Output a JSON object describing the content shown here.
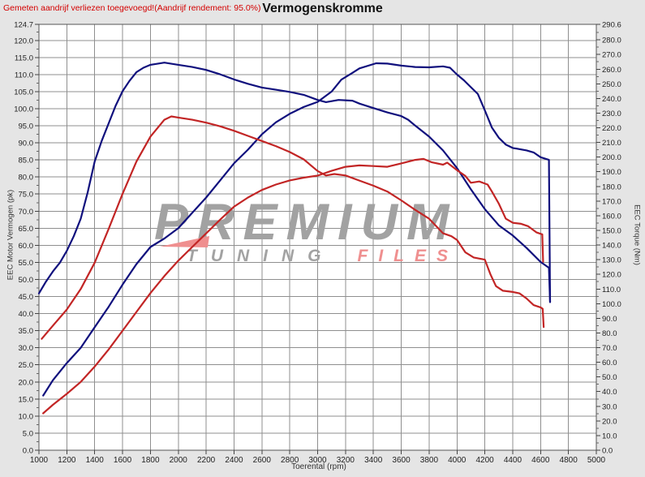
{
  "header": {
    "note": "Gemeten aandrijf verliezen toegevoegd!(Aandrijf rendement: 95.0%)",
    "title": "Vermogenskromme"
  },
  "axes": {
    "left": {
      "title": "EEC Motor Vermogen (pk)",
      "range": [
        0,
        124.7
      ],
      "tick_labels": [
        124.7,
        120,
        115,
        110,
        105,
        100,
        95,
        90,
        85,
        80,
        75,
        70,
        65,
        60,
        55,
        50,
        45,
        40,
        35,
        30,
        25,
        20,
        15,
        10,
        5,
        0
      ]
    },
    "right": {
      "title": "EEC Torque (Nm)",
      "range": [
        0,
        290.6
      ],
      "tick_labels": [
        290.6,
        280,
        270,
        260,
        250,
        240,
        230,
        220,
        210,
        200,
        190,
        180,
        170,
        160,
        150,
        140,
        130,
        120,
        110,
        100,
        90,
        80,
        70,
        60,
        50,
        40,
        30,
        20,
        10,
        0
      ]
    },
    "x": {
      "title": "Toerental (rpm)",
      "range": [
        1000,
        5000
      ],
      "tick_labels": [
        1000,
        1200,
        1400,
        1600,
        1800,
        2000,
        2200,
        2400,
        2600,
        2800,
        3000,
        3200,
        3400,
        3600,
        3800,
        4000,
        4200,
        4400,
        4600,
        4800,
        5000
      ]
    }
  },
  "watermark": {
    "line1": "PREMIUM",
    "line2a": "TUNING",
    "line2b": "FILES"
  },
  "colors": {
    "background": "#e5e5e5",
    "plot_bg": "#ffffff",
    "grid": "#8f8f8f",
    "frame": "#555555",
    "blue_curve": "#10107d",
    "red_curve": "#c22525",
    "note_red": "#d40000",
    "watermark_gray": "#a2a2a2",
    "watermark_red": "#ef8f8f",
    "tick_text": "#222222"
  },
  "chart_data": {
    "type": "line",
    "title": "Vermogenskromme",
    "xlabel": "Toerental (rpm)",
    "ylabel_left": "EEC Motor Vermogen (pk)",
    "ylabel_right": "EEC Torque (Nm)",
    "x_range": [
      1000,
      5000
    ],
    "left_range": [
      0,
      124.7
    ],
    "right_range": [
      0,
      290.6
    ],
    "grid": {
      "x_step": 200,
      "left_step": 5
    },
    "legend": "none",
    "series": [
      {
        "name": "blue-power-pk",
        "axis": "left",
        "color": "#10107d",
        "peak": "113.3 pk @ ~3450 rpm",
        "points": [
          [
            1030,
            16
          ],
          [
            1100,
            20.5
          ],
          [
            1200,
            25.5
          ],
          [
            1300,
            30
          ],
          [
            1400,
            36
          ],
          [
            1500,
            42
          ],
          [
            1600,
            48.5
          ],
          [
            1700,
            54.5
          ],
          [
            1800,
            59.5
          ],
          [
            1900,
            62
          ],
          [
            2000,
            65
          ],
          [
            2100,
            69.5
          ],
          [
            2200,
            74
          ],
          [
            2300,
            79
          ],
          [
            2400,
            84
          ],
          [
            2500,
            88
          ],
          [
            2600,
            92.5
          ],
          [
            2700,
            96
          ],
          [
            2800,
            98.5
          ],
          [
            2900,
            100.5
          ],
          [
            3000,
            102
          ],
          [
            3100,
            105
          ],
          [
            3170,
            108.5
          ],
          [
            3250,
            110.5
          ],
          [
            3300,
            111.8
          ],
          [
            3420,
            113.3
          ],
          [
            3500,
            113.2
          ],
          [
            3600,
            112.6
          ],
          [
            3700,
            112.2
          ],
          [
            3800,
            112.1
          ],
          [
            3900,
            112.4
          ],
          [
            3950,
            112
          ],
          [
            4000,
            110
          ],
          [
            4050,
            108.3
          ],
          [
            4100,
            106.3
          ],
          [
            4150,
            104.3
          ],
          [
            4200,
            99.5
          ],
          [
            4250,
            94.5
          ],
          [
            4300,
            91.5
          ],
          [
            4350,
            89.5
          ],
          [
            4400,
            88.5
          ],
          [
            4500,
            87.8
          ],
          [
            4550,
            87.2
          ],
          [
            4600,
            85.8
          ],
          [
            4660,
            85
          ],
          [
            4668,
            43.5
          ]
        ]
      },
      {
        "name": "blue-torque-nm",
        "axis": "right",
        "color": "#10107d",
        "peak": "264.5 Nm @ ~1900 rpm",
        "points": [
          [
            1000,
            107
          ],
          [
            1050,
            115
          ],
          [
            1100,
            122
          ],
          [
            1150,
            128
          ],
          [
            1200,
            136
          ],
          [
            1250,
            146
          ],
          [
            1300,
            158
          ],
          [
            1350,
            176
          ],
          [
            1400,
            197
          ],
          [
            1450,
            211
          ],
          [
            1500,
            223
          ],
          [
            1550,
            235
          ],
          [
            1600,
            245
          ],
          [
            1650,
            252
          ],
          [
            1700,
            258
          ],
          [
            1750,
            261
          ],
          [
            1800,
            263
          ],
          [
            1900,
            264.5
          ],
          [
            2000,
            263
          ],
          [
            2100,
            261.5
          ],
          [
            2200,
            259.5
          ],
          [
            2300,
            256.5
          ],
          [
            2400,
            253
          ],
          [
            2500,
            250
          ],
          [
            2600,
            247.5
          ],
          [
            2700,
            246
          ],
          [
            2800,
            244.5
          ],
          [
            2900,
            242.5
          ],
          [
            3000,
            239
          ],
          [
            3060,
            237.5
          ],
          [
            3150,
            239
          ],
          [
            3250,
            238.5
          ],
          [
            3300,
            236.5
          ],
          [
            3400,
            233.5
          ],
          [
            3500,
            230.5
          ],
          [
            3600,
            228
          ],
          [
            3650,
            225.5
          ],
          [
            3700,
            221.5
          ],
          [
            3800,
            214
          ],
          [
            3900,
            204.5
          ],
          [
            4000,
            192.5
          ],
          [
            4100,
            178
          ],
          [
            4200,
            164.5
          ],
          [
            4300,
            153.5
          ],
          [
            4400,
            146.5
          ],
          [
            4500,
            138
          ],
          [
            4600,
            128.5
          ],
          [
            4660,
            124.5
          ],
          [
            4668,
            101
          ]
        ]
      },
      {
        "name": "red-power-pk",
        "axis": "left",
        "color": "#c22525",
        "peak": "85.3 pk @ ~3760 rpm",
        "points": [
          [
            1030,
            10.8
          ],
          [
            1100,
            13.3
          ],
          [
            1200,
            16.5
          ],
          [
            1300,
            20
          ],
          [
            1400,
            24.5
          ],
          [
            1500,
            29.5
          ],
          [
            1600,
            35
          ],
          [
            1700,
            40.5
          ],
          [
            1800,
            46
          ],
          [
            1900,
            51
          ],
          [
            2000,
            55.5
          ],
          [
            2100,
            59.5
          ],
          [
            2200,
            63.5
          ],
          [
            2300,
            67.5
          ],
          [
            2400,
            71.3
          ],
          [
            2500,
            74
          ],
          [
            2600,
            76.2
          ],
          [
            2700,
            77.8
          ],
          [
            2800,
            79
          ],
          [
            2900,
            79.8
          ],
          [
            3000,
            80.4
          ],
          [
            3100,
            81.8
          ],
          [
            3200,
            83
          ],
          [
            3300,
            83.4
          ],
          [
            3400,
            83.2
          ],
          [
            3500,
            83
          ],
          [
            3600,
            84
          ],
          [
            3700,
            85
          ],
          [
            3760,
            85.3
          ],
          [
            3820,
            84.3
          ],
          [
            3900,
            83.6
          ],
          [
            3930,
            84.2
          ],
          [
            4000,
            82
          ],
          [
            4060,
            80.3
          ],
          [
            4100,
            78.3
          ],
          [
            4160,
            78.7
          ],
          [
            4220,
            77.8
          ],
          [
            4250,
            75.8
          ],
          [
            4300,
            72.2
          ],
          [
            4350,
            67.8
          ],
          [
            4400,
            66.6
          ],
          [
            4460,
            66.3
          ],
          [
            4510,
            65.6
          ],
          [
            4570,
            63.8
          ],
          [
            4612,
            63.2
          ],
          [
            4618,
            55.2
          ]
        ]
      },
      {
        "name": "red-torque-nm",
        "axis": "right",
        "color": "#c22525",
        "peak": "227.8 Nm @ ~1950 rpm",
        "points": [
          [
            1020,
            76
          ],
          [
            1100,
            85
          ],
          [
            1200,
            96
          ],
          [
            1300,
            110
          ],
          [
            1400,
            128
          ],
          [
            1500,
            151
          ],
          [
            1600,
            175
          ],
          [
            1700,
            197
          ],
          [
            1800,
            214
          ],
          [
            1900,
            225.5
          ],
          [
            1950,
            227.8
          ],
          [
            2000,
            227
          ],
          [
            2100,
            225.5
          ],
          [
            2200,
            223.5
          ],
          [
            2300,
            221
          ],
          [
            2400,
            218
          ],
          [
            2500,
            214.5
          ],
          [
            2600,
            211
          ],
          [
            2700,
            207.5
          ],
          [
            2800,
            203.5
          ],
          [
            2900,
            198.5
          ],
          [
            3000,
            190.5
          ],
          [
            3060,
            187.5
          ],
          [
            3120,
            188.5
          ],
          [
            3200,
            187.5
          ],
          [
            3300,
            184
          ],
          [
            3400,
            180.5
          ],
          [
            3500,
            176.5
          ],
          [
            3600,
            170.5
          ],
          [
            3700,
            164
          ],
          [
            3800,
            158
          ],
          [
            3900,
            148
          ],
          [
            3960,
            146
          ],
          [
            4000,
            143.5
          ],
          [
            4060,
            135
          ],
          [
            4120,
            131.5
          ],
          [
            4200,
            130
          ],
          [
            4240,
            120
          ],
          [
            4280,
            112
          ],
          [
            4330,
            108.8
          ],
          [
            4400,
            108
          ],
          [
            4450,
            107
          ],
          [
            4500,
            103.5
          ],
          [
            4550,
            99
          ],
          [
            4600,
            97.5
          ],
          [
            4615,
            96.5
          ],
          [
            4622,
            84
          ]
        ]
      }
    ]
  }
}
